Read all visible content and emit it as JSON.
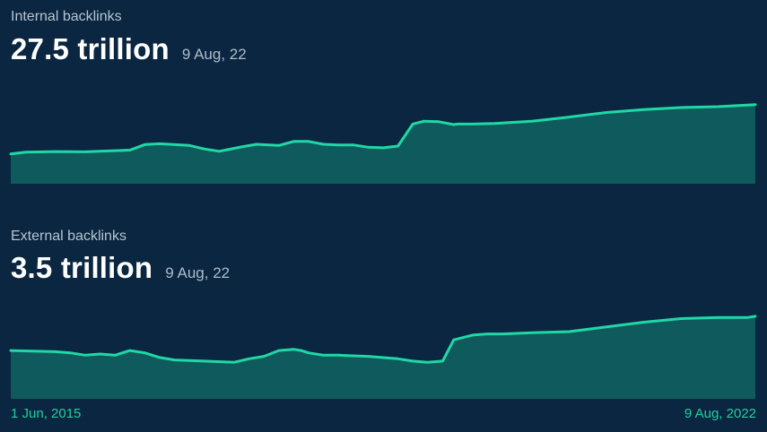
{
  "colors": {
    "background": "#0a2640",
    "line": "#1fd8a6",
    "fill": "#0f5a5c"
  },
  "panels": [
    {
      "label": "Internal backlinks",
      "value": "27.5 trillion",
      "date": "9 Aug, 22"
    },
    {
      "label": "External backlinks",
      "value": "3.5 trillion",
      "date": "9 Aug, 22"
    }
  ],
  "axis": {
    "start": "1 Jun, 2015",
    "end": "9 Aug, 2022"
  },
  "chart_data": [
    {
      "type": "area",
      "title": "Internal backlinks",
      "x_range": [
        "1 Jun, 2015",
        "9 Aug, 2022"
      ],
      "series": [
        {
          "name": "Internal backlinks",
          "x": [
            0,
            0.02,
            0.06,
            0.1,
            0.14,
            0.16,
            0.18,
            0.2,
            0.24,
            0.26,
            0.28,
            0.31,
            0.33,
            0.36,
            0.38,
            0.4,
            0.42,
            0.44,
            0.46,
            0.48,
            0.5,
            0.52,
            0.54,
            0.555,
            0.575,
            0.595,
            0.6,
            0.62,
            0.65,
            0.7,
            0.75,
            0.8,
            0.85,
            0.9,
            0.95,
            1.0
          ],
          "values": [
            10.3,
            10.9,
            11.1,
            11.0,
            11.4,
            11.6,
            13.5,
            13.8,
            13.2,
            12.0,
            11.2,
            12.7,
            13.6,
            13.2,
            14.6,
            14.6,
            13.6,
            13.4,
            13.4,
            12.6,
            12.4,
            13.0,
            20.6,
            21.6,
            21.4,
            20.4,
            20.6,
            20.6,
            20.8,
            21.6,
            23.0,
            24.6,
            25.6,
            26.3,
            26.6,
            27.3
          ]
        }
      ]
    },
    {
      "type": "area",
      "title": "External backlinks",
      "x_range": [
        "1 Jun, 2015",
        "9 Aug, 2022"
      ],
      "series": [
        {
          "name": "External backlinks",
          "x": [
            0,
            0.06,
            0.08,
            0.1,
            0.12,
            0.14,
            0.16,
            0.18,
            0.2,
            0.22,
            0.26,
            0.3,
            0.32,
            0.34,
            0.36,
            0.38,
            0.39,
            0.4,
            0.42,
            0.44,
            0.48,
            0.52,
            0.54,
            0.56,
            0.58,
            0.595,
            0.62,
            0.64,
            0.66,
            0.7,
            0.75,
            0.8,
            0.85,
            0.9,
            0.95,
            0.99,
            1.0
          ],
          "values": [
            2.05,
            2.0,
            1.95,
            1.85,
            1.9,
            1.85,
            2.05,
            1.95,
            1.75,
            1.65,
            1.6,
            1.55,
            1.7,
            1.8,
            2.05,
            2.1,
            2.05,
            1.95,
            1.85,
            1.85,
            1.8,
            1.7,
            1.6,
            1.55,
            1.6,
            2.5,
            2.7,
            2.75,
            2.75,
            2.8,
            2.85,
            3.05,
            3.25,
            3.4,
            3.45,
            3.45,
            3.5
          ]
        }
      ]
    }
  ]
}
